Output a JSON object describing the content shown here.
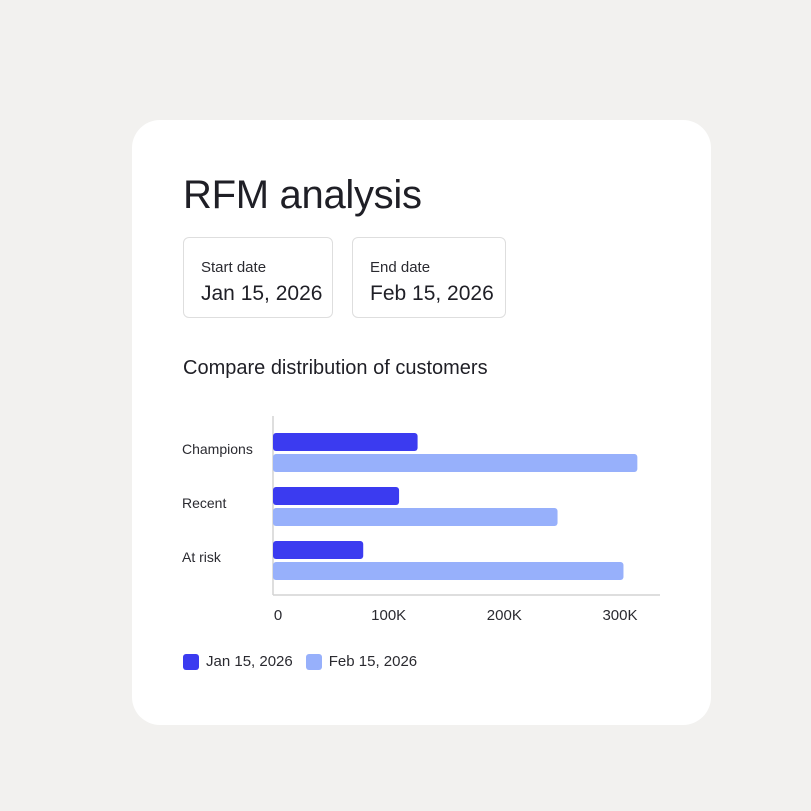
{
  "card": {
    "title": "RFM analysis",
    "start_date": {
      "label": "Start date",
      "value": "Jan 15, 2026"
    },
    "end_date": {
      "label": "End date",
      "value": "Feb 15, 2026"
    },
    "subtitle": "Compare distribution of customers"
  },
  "chart_data": {
    "type": "bar",
    "orientation": "horizontal",
    "categories": [
      "Champions",
      "Recent",
      "At risk"
    ],
    "series": [
      {
        "name": "Jan 15, 2026",
        "color": "#3b3bf0",
        "values": [
          125000,
          109000,
          78000
        ]
      },
      {
        "name": "Feb 15, 2026",
        "color": "#97b0fb",
        "values": [
          315000,
          246000,
          303000
        ]
      }
    ],
    "xlim": [
      0,
      350000
    ],
    "xticks": [
      {
        "value": 0,
        "label": "0"
      },
      {
        "value": 100000,
        "label": "100K"
      },
      {
        "value": 200000,
        "label": "200K"
      },
      {
        "value": 300000,
        "label": "300K"
      }
    ],
    "grid": false,
    "legend_position": "bottom-left"
  }
}
